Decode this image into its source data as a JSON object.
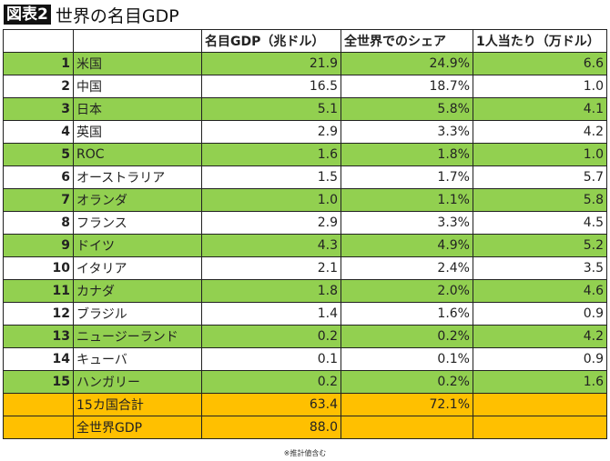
{
  "title": {
    "badge": "図表2",
    "text": "世界の名目GDP"
  },
  "headers": [
    "",
    "",
    "名目GDP（兆ドル）",
    "全世界でのシェア",
    "1人当たり（万ドル）"
  ],
  "rows": [
    {
      "rank": "1",
      "country": "米国",
      "gdp": "21.9",
      "share": "24.9%",
      "per_capita": "6.6"
    },
    {
      "rank": "2",
      "country": "中国",
      "gdp": "16.5",
      "share": "18.7%",
      "per_capita": "1.0"
    },
    {
      "rank": "3",
      "country": "日本",
      "gdp": "5.1",
      "share": "5.8%",
      "per_capita": "4.1"
    },
    {
      "rank": "4",
      "country": "英国",
      "gdp": "2.9",
      "share": "3.3%",
      "per_capita": "4.2"
    },
    {
      "rank": "5",
      "country": "ROC",
      "gdp": "1.6",
      "share": "1.8%",
      "per_capita": "1.0"
    },
    {
      "rank": "6",
      "country": "オーストラリア",
      "gdp": "1.5",
      "share": "1.7%",
      "per_capita": "5.7"
    },
    {
      "rank": "7",
      "country": "オランダ",
      "gdp": "1.0",
      "share": "1.1%",
      "per_capita": "5.8"
    },
    {
      "rank": "8",
      "country": "フランス",
      "gdp": "2.9",
      "share": "3.3%",
      "per_capita": "4.5"
    },
    {
      "rank": "9",
      "country": "ドイツ",
      "gdp": "4.3",
      "share": "4.9%",
      "per_capita": "5.2"
    },
    {
      "rank": "10",
      "country": "イタリア",
      "gdp": "2.1",
      "share": "2.4%",
      "per_capita": "3.5"
    },
    {
      "rank": "11",
      "country": "カナダ",
      "gdp": "1.8",
      "share": "2.0%",
      "per_capita": "4.6"
    },
    {
      "rank": "12",
      "country": "ブラジル",
      "gdp": "1.4",
      "share": "1.6%",
      "per_capita": "0.9"
    },
    {
      "rank": "13",
      "country": "ニュージーランド",
      "gdp": "0.2",
      "share": "0.2%",
      "per_capita": "4.2"
    },
    {
      "rank": "14",
      "country": "キューバ",
      "gdp": "0.1",
      "share": "0.1%",
      "per_capita": "0.9"
    },
    {
      "rank": "15",
      "country": "ハンガリー",
      "gdp": "0.2",
      "share": "0.2%",
      "per_capita": "1.6"
    }
  ],
  "totals": [
    {
      "label": "15カ国合計",
      "gdp": "63.4",
      "share": "72.1%",
      "per_capita": ""
    },
    {
      "label": "全世界GDP",
      "gdp": "88.0",
      "share": "",
      "per_capita": ""
    }
  ],
  "note": "※推計値含む",
  "colors": {
    "green": "#92d050",
    "orange": "#ffc000"
  }
}
